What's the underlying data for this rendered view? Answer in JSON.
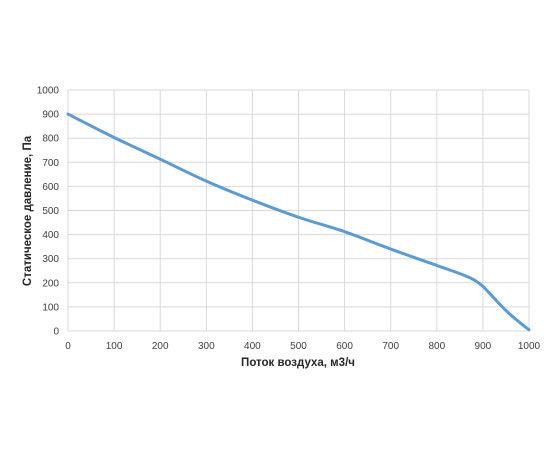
{
  "chart_data": {
    "type": "line",
    "title": "",
    "xlabel": "Поток воздуха, м3/ч",
    "ylabel": "Статическое давление, Па",
    "xlim": [
      0,
      1000
    ],
    "ylim": [
      0,
      1000
    ],
    "x_ticks": [
      0,
      100,
      200,
      300,
      400,
      500,
      600,
      700,
      800,
      900,
      1000
    ],
    "y_ticks": [
      0,
      100,
      200,
      300,
      400,
      500,
      600,
      700,
      800,
      900,
      1000
    ],
    "grid": true,
    "legend": "none",
    "series": [
      {
        "color": "#5b9bd5",
        "x": [
          0,
          100,
          200,
          300,
          400,
          500,
          600,
          700,
          800,
          850,
          880,
          900,
          920,
          950,
          980,
          1000
        ],
        "y": [
          900,
          803,
          713,
          622,
          543,
          472,
          412,
          340,
          272,
          238,
          213,
          185,
          145,
          85,
          35,
          5
        ]
      }
    ]
  }
}
